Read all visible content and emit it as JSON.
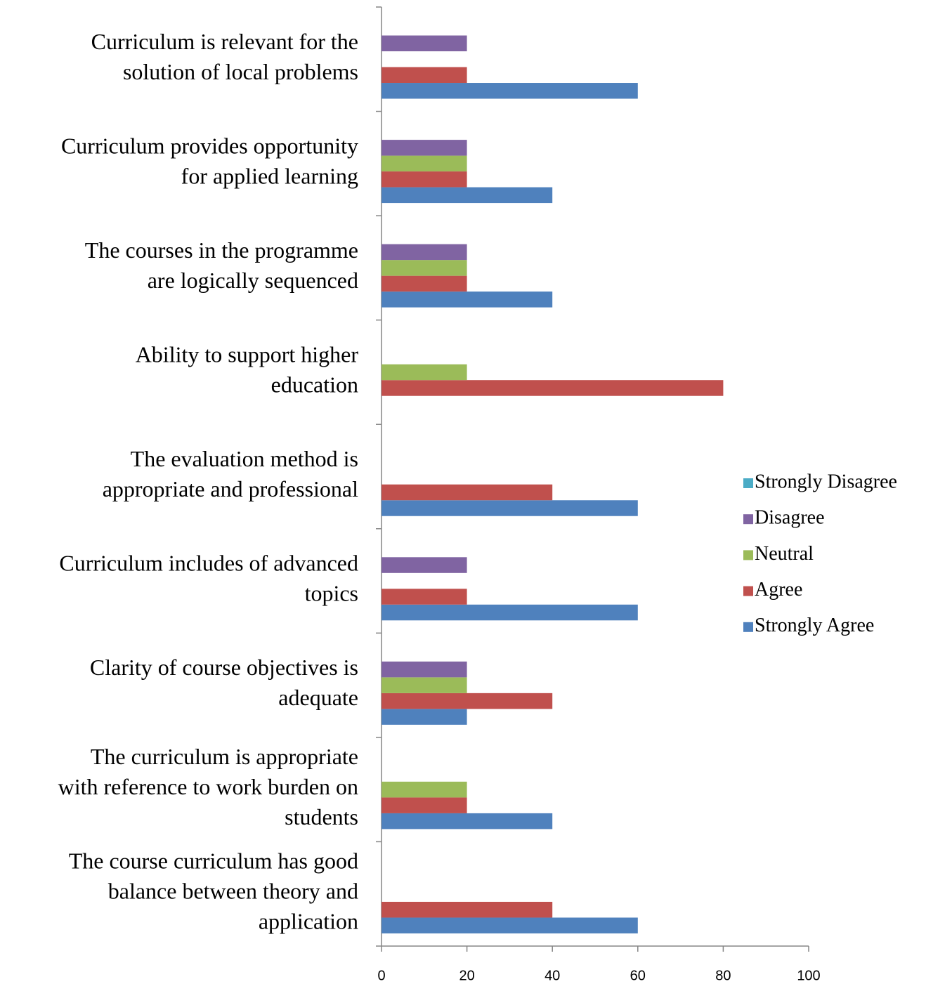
{
  "chart_data": {
    "type": "bar",
    "orientation": "horizontal",
    "categories": [
      "Curriculum is relevant for the\nsolution of local problems",
      "Curriculum provides opportunity\nfor applied learning",
      "The courses in the programme\nare logically sequenced",
      "Ability to support higher\neducation",
      "The evaluation method is\nappropriate and professional",
      "Curriculum includes of advanced\ntopics",
      "Clarity of course objectives is\nadequate",
      "The curriculum is appropriate\nwith reference to work burden on\nstudents",
      "The course curriculum has good\nbalance between theory and\napplication"
    ],
    "series": [
      {
        "name": "Strongly Agree",
        "color": "#4f81bd",
        "values": [
          60,
          40,
          40,
          0,
          60,
          60,
          20,
          40,
          60
        ]
      },
      {
        "name": "Agree",
        "color": "#c0504d",
        "values": [
          20,
          20,
          20,
          80,
          40,
          20,
          40,
          20,
          40
        ]
      },
      {
        "name": "Neutral",
        "color": "#9bbb59",
        "values": [
          0,
          20,
          20,
          20,
          0,
          0,
          20,
          20,
          0
        ]
      },
      {
        "name": "Disagree",
        "color": "#8064a2",
        "values": [
          20,
          20,
          20,
          0,
          0,
          20,
          20,
          0,
          0
        ]
      },
      {
        "name": "Strongly Disagree",
        "color": "#4bacc6",
        "values": [
          0,
          0,
          0,
          0,
          0,
          0,
          0,
          0,
          0
        ]
      }
    ],
    "xlim": [
      0,
      100
    ],
    "xticks": [
      0,
      20,
      40,
      60,
      80,
      100
    ],
    "grid": false,
    "legend": "right"
  }
}
